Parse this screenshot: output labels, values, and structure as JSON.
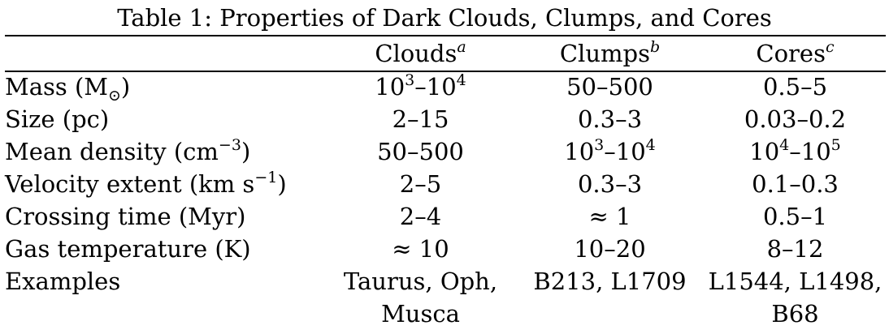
{
  "caption": "Table 1: Properties of Dark Clouds, Clumps, and Cores",
  "columns": [
    {
      "label": "Clouds",
      "note": "a"
    },
    {
      "label": "Clumps",
      "note": "b"
    },
    {
      "label": "Cores",
      "note": "c"
    }
  ],
  "rows": {
    "mass": {
      "label": "Mass (M",
      "label_sub": "⊙",
      "label_end": ")",
      "clouds_base1": "10",
      "clouds_exp1": "3",
      "clouds_sep": "–",
      "clouds_base2": "10",
      "clouds_exp2": "4",
      "clumps": "50–500",
      "cores": "0.5–5"
    },
    "size": {
      "label": "Size (pc)",
      "clouds": "2–15",
      "clumps": "0.3–3",
      "cores": "0.03–0.2"
    },
    "density": {
      "label": "Mean density (cm",
      "label_exp": "−3",
      "label_end": ")",
      "clouds": "50–500",
      "clumps_base1": "10",
      "clumps_exp1": "3",
      "clumps_sep": "–",
      "clumps_base2": "10",
      "clumps_exp2": "4",
      "cores_base1": "10",
      "cores_exp1": "4",
      "cores_sep": "–",
      "cores_base2": "10",
      "cores_exp2": "5"
    },
    "velocity": {
      "label": "Velocity extent (km s",
      "label_exp": "−1",
      "label_end": ")",
      "clouds": "2–5",
      "clumps": "0.3–3",
      "cores": "0.1–0.3"
    },
    "crossing": {
      "label": "Crossing time (Myr)",
      "clouds": "2–4",
      "clumps": "≈ 1",
      "cores": "0.5–1"
    },
    "temperature": {
      "label": "Gas temperature (K)",
      "clouds": "≈ 10",
      "clumps": "10–20",
      "cores": "8–12"
    },
    "examples": {
      "label": "Examples",
      "clouds_line1": "Taurus, Oph,",
      "clouds_line2": "Musca",
      "clumps_line1": "B213, L1709",
      "cores_line1": "L1544, L1498,",
      "cores_line2": "B68"
    }
  }
}
